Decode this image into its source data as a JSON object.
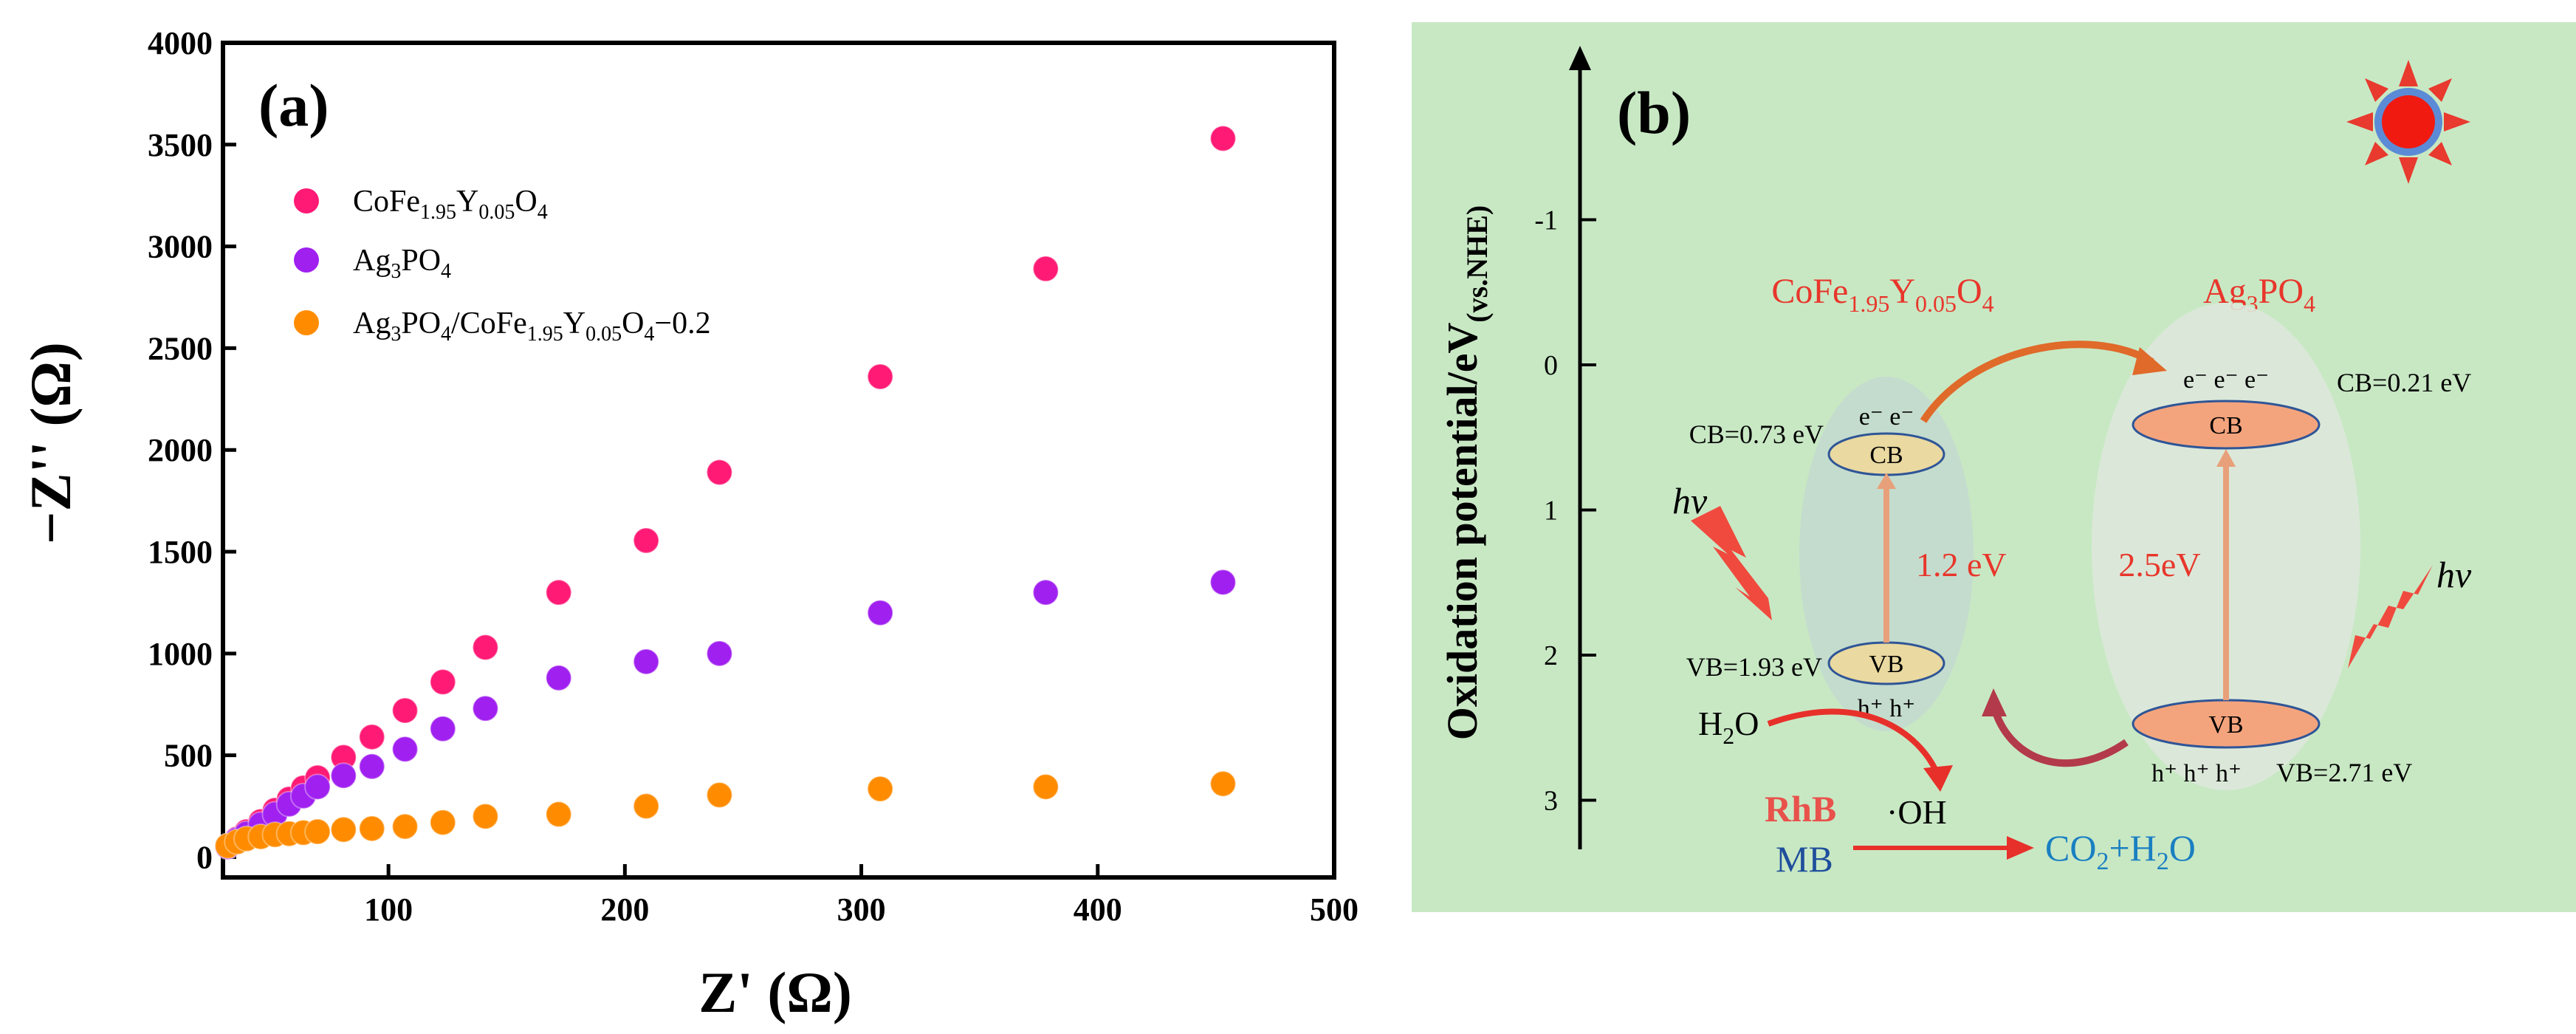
{
  "chart_data": [
    {
      "type": "scatter",
      "panel_label": "(a)",
      "xlabel": "Z' (Ω)",
      "ylabel": "−Z'' (Ω)",
      "xlim": [
        30,
        500
      ],
      "ylim": [
        -100,
        4000
      ],
      "x_ticks": [
        100,
        200,
        300,
        400,
        500
      ],
      "y_ticks": [
        0,
        500,
        1000,
        1500,
        2000,
        2500,
        3000,
        3500,
        4000
      ],
      "legend_position": "top-left",
      "series": [
        {
          "name": "CoFe1.95Y0.05O4",
          "color": "#ff1a75",
          "x": [
            32,
            36,
            40,
            46,
            52,
            58,
            64,
            70,
            81,
            93,
            107,
            123,
            141,
            172,
            209,
            240,
            308,
            378,
            453
          ],
          "y": [
            55,
            90,
            125,
            175,
            230,
            285,
            340,
            390,
            490,
            590,
            720,
            860,
            1030,
            1300,
            1555,
            1890,
            2360,
            2890,
            3530
          ]
        },
        {
          "name": "Ag3PO4",
          "color": "#a020f0",
          "x": [
            32,
            36,
            40,
            46,
            52,
            58,
            64,
            70,
            81,
            93,
            107,
            123,
            141,
            172,
            209,
            240,
            308,
            378,
            453
          ],
          "y": [
            50,
            85,
            115,
            160,
            210,
            260,
            300,
            345,
            400,
            445,
            530,
            630,
            730,
            880,
            960,
            1000,
            1200,
            1300,
            1350
          ]
        },
        {
          "name": "Ag3PO4/CoFe1.95Y0.05O4−0.2",
          "color": "#ff8c00",
          "x": [
            32,
            36,
            40,
            46,
            52,
            58,
            64,
            70,
            81,
            93,
            107,
            123,
            141,
            172,
            209,
            240,
            308,
            378,
            453
          ],
          "y": [
            55,
            75,
            90,
            100,
            110,
            115,
            120,
            125,
            135,
            140,
            150,
            170,
            200,
            210,
            250,
            305,
            335,
            345,
            360
          ]
        }
      ]
    },
    {
      "type": "diagram",
      "panel_label": "(b)",
      "ylabel": "Oxidation potential/eV",
      "ylabel_sub": "(vs.NHE)",
      "y_ticks": [
        "-1",
        "0",
        "1",
        "2",
        "3"
      ],
      "semiconductors": [
        {
          "name_parts": [
            "CoFe",
            "1.95",
            "Y",
            "0.05",
            "O",
            "4"
          ],
          "cb_label": "CB=0.73 eV",
          "vb_label": "VB=1.93 eV",
          "gap": "1.2 eV",
          "cb": "CB",
          "vb": "VB",
          "electrons": "e⁻ e⁻",
          "holes": "h⁺ h⁺"
        },
        {
          "name_parts": [
            "Ag",
            "3",
            "PO",
            "4"
          ],
          "cb_label": "CB=0.21 eV",
          "vb_label": "VB=2.71 eV",
          "gap": "2.5eV",
          "cb": "CB",
          "vb": "VB",
          "electrons": "e⁻ e⁻ e⁻",
          "holes": "h⁺ h⁺ h⁺"
        }
      ],
      "hv": "hv",
      "reactant": "H2O",
      "radical": "·OH",
      "dyes": [
        "RhB",
        "MB"
      ],
      "products": "CO2+H2O"
    }
  ]
}
